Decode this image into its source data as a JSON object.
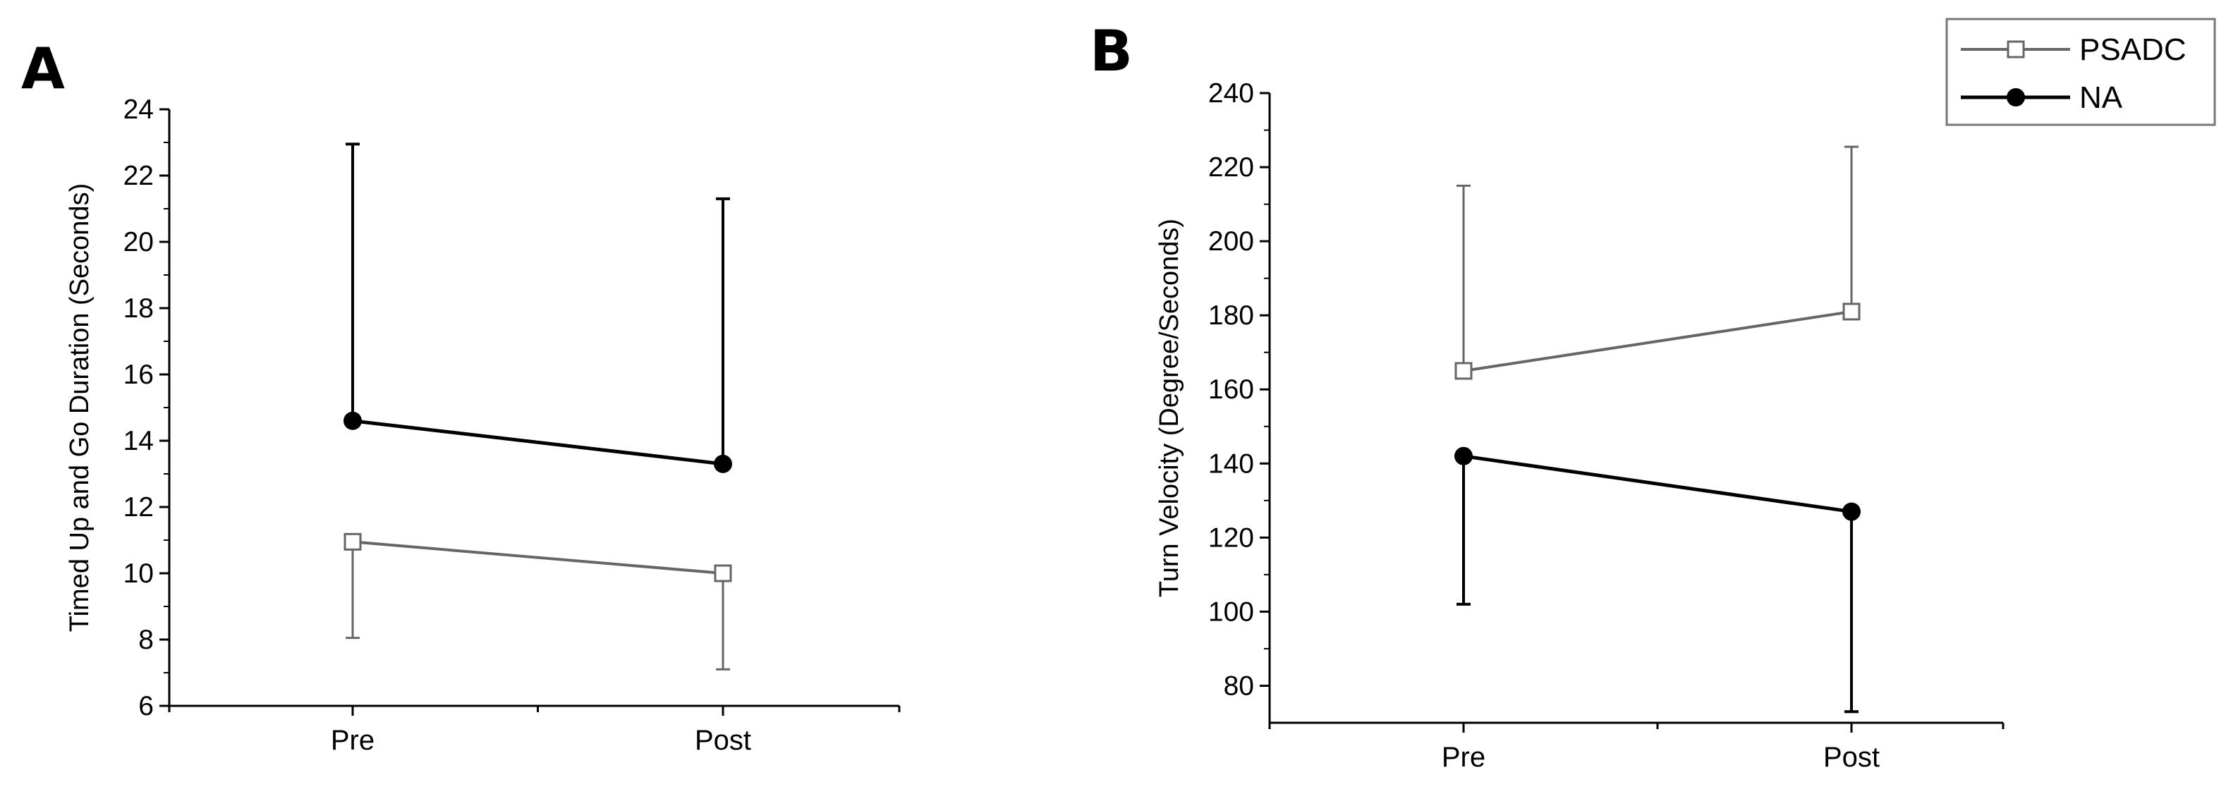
{
  "legend": {
    "placement": "top-right",
    "entries": [
      {
        "label": "PSADC",
        "marker": "open-square",
        "color": "#666666"
      },
      {
        "label": "NA",
        "marker": "filled-circle",
        "color": "#000000"
      }
    ]
  },
  "chart_data": [
    {
      "panel_label": "A",
      "type": "line",
      "categories": [
        "Pre",
        "Post"
      ],
      "ylabel": "Timed Up and Go Duration (Seconds)",
      "xlabel": "",
      "ylim": [
        6,
        24
      ],
      "yticks": [
        6,
        8,
        10,
        12,
        14,
        16,
        18,
        20,
        22,
        24
      ],
      "grid": false,
      "series": [
        {
          "name": "PSADC",
          "values": [
            10.95,
            10.0
          ],
          "err_low": [
            8.05,
            7.1
          ],
          "err_high": [
            null,
            null
          ],
          "color": "#666666",
          "marker": "open-square"
        },
        {
          "name": "NA",
          "values": [
            14.6,
            13.3
          ],
          "err_low": [
            null,
            null
          ],
          "err_high": [
            22.95,
            21.3
          ],
          "color": "#000000",
          "marker": "filled-circle"
        }
      ]
    },
    {
      "panel_label": "B",
      "type": "line",
      "categories": [
        "Pre",
        "Post"
      ],
      "ylabel": "Turn Velocity (Degree/Seconds)",
      "xlabel": "",
      "ylim": [
        70,
        240
      ],
      "yticks": [
        80,
        100,
        120,
        140,
        160,
        180,
        200,
        220,
        240
      ],
      "grid": false,
      "series": [
        {
          "name": "PSADC",
          "values": [
            165,
            181
          ],
          "err_low": [
            null,
            null
          ],
          "err_high": [
            215,
            225.5
          ],
          "color": "#666666",
          "marker": "open-square"
        },
        {
          "name": "NA",
          "values": [
            142,
            127
          ],
          "err_low": [
            102,
            73
          ],
          "err_high": [
            null,
            null
          ],
          "color": "#000000",
          "marker": "filled-circle"
        }
      ]
    }
  ]
}
